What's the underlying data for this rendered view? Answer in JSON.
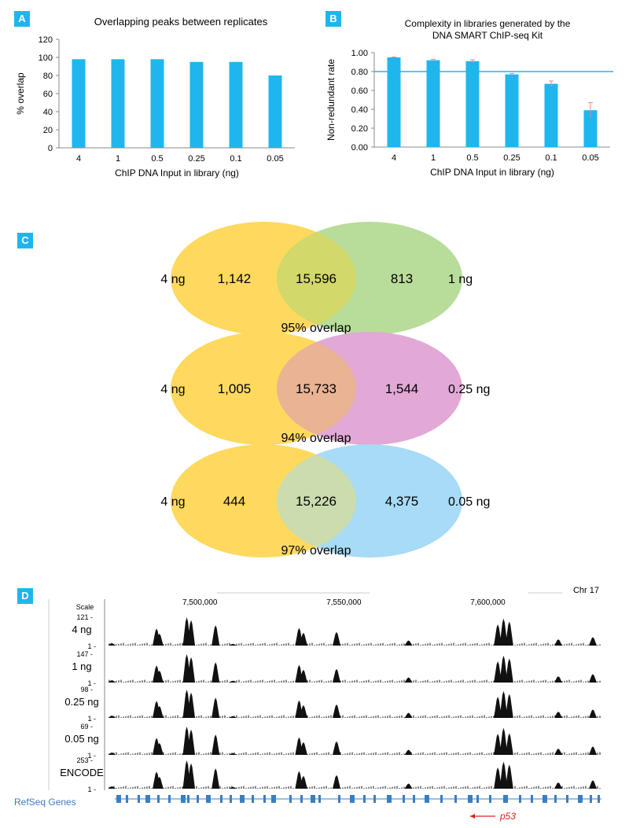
{
  "panels": {
    "a": "A",
    "b": "B",
    "c": "C",
    "d": "D"
  },
  "colors": {
    "bar": "#1fb6ee",
    "label_bg": "#1fb6ee",
    "threshold": "#1fb6ee",
    "error_bar": "#e58a8a",
    "venn_4ng": "#ffd95e",
    "venn_1ng": "#b8dc9a",
    "venn_025ng": "#e2a8d6",
    "venn_005ng": "#a7dbf6",
    "track": "#111111",
    "refseq": "#3a7ec2",
    "p53_arrow": "#e02020"
  },
  "chart_data": [
    {
      "id": "A",
      "type": "bar",
      "title": "Overlapping peaks between replicates",
      "xlabel": "ChIP DNA Input in library (ng)",
      "ylabel": "% overlap",
      "categories": [
        "4",
        "1",
        "0.5",
        "0.25",
        "0.1",
        "0.05"
      ],
      "values": [
        98,
        98,
        98,
        95,
        95,
        80
      ],
      "ylim": [
        0,
        120
      ],
      "yticks": [
        "0",
        "20",
        "40",
        "60",
        "80",
        "100",
        "120"
      ],
      "grid": false
    },
    {
      "id": "B",
      "type": "bar",
      "title_lines": [
        "Complexity in libraries generated by the",
        "DNA SMART ChIP-seq Kit"
      ],
      "xlabel": "ChIP DNA Input in library (ng)",
      "ylabel": "Non-redundant rate",
      "categories": [
        "4",
        "1",
        "0.5",
        "0.25",
        "0.1",
        "0.05"
      ],
      "values": [
        0.95,
        0.92,
        0.91,
        0.77,
        0.67,
        0.39
      ],
      "errors": [
        0.005,
        0.01,
        0.015,
        0.01,
        0.03,
        0.08
      ],
      "threshold": 0.8,
      "ylim": [
        0,
        1.0
      ],
      "yticks": [
        "0.00",
        "0.20",
        "0.40",
        "0.60",
        "0.80",
        "1.00"
      ],
      "grid": false
    },
    {
      "id": "C",
      "type": "venn",
      "diagrams": [
        {
          "left_label": "4 ng",
          "right_label": "1 ng",
          "left_only": "1,142",
          "shared": "15,596",
          "right_only": "813",
          "caption": "95% overlap",
          "right_color": "venn_1ng",
          "mix_color": "#d2d869"
        },
        {
          "left_label": "4 ng",
          "right_label": "0.25 ng",
          "left_only": "1,005",
          "shared": "15,733",
          "right_only": "1,544",
          "caption": "94% overlap",
          "right_color": "venn_025ng",
          "mix_color": "#e9b394"
        },
        {
          "left_label": "4 ng",
          "right_label": "0.05 ng",
          "left_only": "444",
          "shared": "15,226",
          "right_only": "4,375",
          "caption": "97% overlap",
          "right_color": "venn_005ng",
          "mix_color": "#cbdcae"
        }
      ]
    },
    {
      "id": "D",
      "type": "genome-tracks",
      "chromosome": "Chr 17",
      "scale_label": "Scale",
      "x_ticks": [
        7500000,
        7550000,
        7600000
      ],
      "x_tick_labels": [
        "7,500,000",
        "7,550,000",
        "7,600,000"
      ],
      "x_range": [
        7468000,
        7640000
      ],
      "tracks": [
        {
          "label": "4 ng",
          "max": "121 -",
          "min": "1 -"
        },
        {
          "label": "1 ng",
          "max": "147 -",
          "min": "1 -"
        },
        {
          "label": "0.25 ng",
          "max": "98 -",
          "min": "1 -"
        },
        {
          "label": "0.05 ng",
          "max": "69 -",
          "min": "1 -"
        },
        {
          "label": "ENCODE",
          "max": "253 -",
          "min": "1 -"
        }
      ],
      "peaks": [
        {
          "pos": 7470000,
          "h": 0.08
        },
        {
          "pos": 7485500,
          "h": 0.6
        },
        {
          "pos": 7486500,
          "h": 0.42
        },
        {
          "pos": 7496000,
          "h": 1.0
        },
        {
          "pos": 7497500,
          "h": 0.9
        },
        {
          "pos": 7506000,
          "h": 0.72
        },
        {
          "pos": 7512000,
          "h": 0.06
        },
        {
          "pos": 7535000,
          "h": 0.62
        },
        {
          "pos": 7536500,
          "h": 0.45
        },
        {
          "pos": 7548000,
          "h": 0.48
        },
        {
          "pos": 7573000,
          "h": 0.18
        },
        {
          "pos": 7604000,
          "h": 0.75
        },
        {
          "pos": 7606000,
          "h": 0.95
        },
        {
          "pos": 7608000,
          "h": 0.85
        },
        {
          "pos": 7625000,
          "h": 0.22
        },
        {
          "pos": 7637000,
          "h": 0.3
        }
      ],
      "refseq_label": "RefSeq Genes",
      "gene_label": "p53"
    }
  ]
}
